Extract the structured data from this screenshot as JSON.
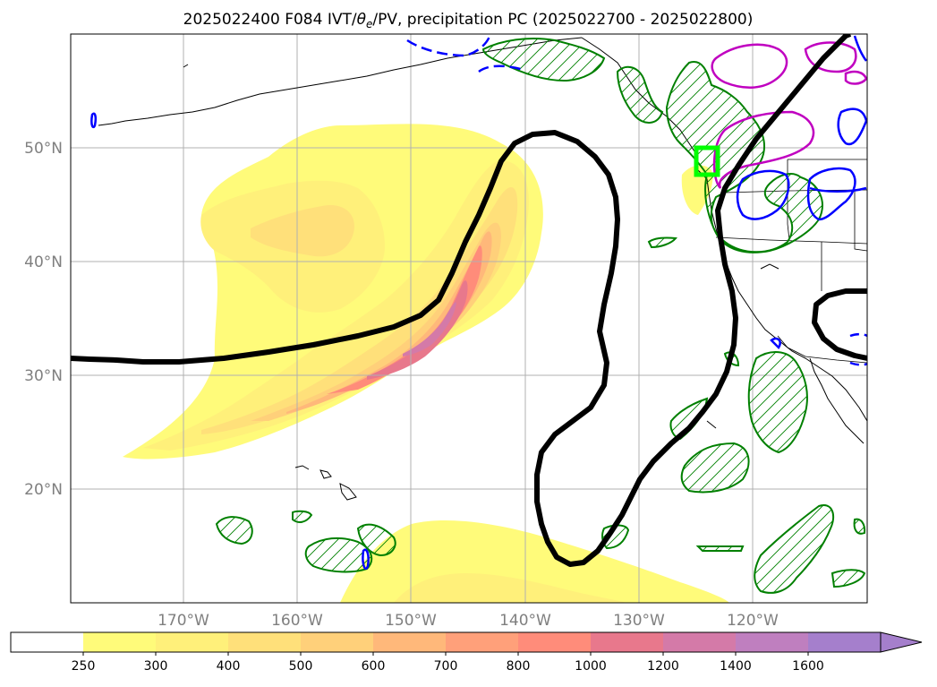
{
  "title": "2025022400 F084 IVT/θe/PV, precipitation PC (2025022700 - 2025022800)",
  "title_parts": {
    "prefix": "2025022400 F084 IVT/",
    "theta": "θ",
    "sub": "e",
    "suffix": "/PV, precipitation PC (2025022700 - 2025022800)"
  },
  "map": {
    "lon_range": [
      -180,
      -110
    ],
    "lat_range": [
      10,
      60
    ],
    "gridlines": true,
    "lat_ticks": [
      {
        "value": 50,
        "label": "50°N"
      },
      {
        "value": 40,
        "label": "40°N"
      },
      {
        "value": 30,
        "label": "30°N"
      },
      {
        "value": 20,
        "label": "20°N"
      }
    ],
    "lon_ticks": [
      {
        "value": -170,
        "label": "170°W"
      },
      {
        "value": -160,
        "label": "160°W"
      },
      {
        "value": -150,
        "label": "150°W"
      },
      {
        "value": -140,
        "label": "140°W"
      },
      {
        "value": -130,
        "label": "130°W"
      },
      {
        "value": -120,
        "label": "120°W"
      }
    ],
    "highlight_box": {
      "lon": [
        -125.5,
        -123.5
      ],
      "lat": [
        47.7,
        50.2
      ],
      "color": "#00ff00"
    },
    "colors": {
      "theta_contour": "#000000",
      "precip_hatch": "#008000",
      "pv_contour": "#0000ff",
      "magenta_contour": "#c000c0",
      "coast": "#000000",
      "grid": "#b0b0b0"
    }
  },
  "colorbar": {
    "levels": [
      "250",
      "300",
      "400",
      "500",
      "600",
      "700",
      "800",
      "1000",
      "1200",
      "1400",
      "1600"
    ],
    "colors": [
      "#ffffff",
      "#fffb7a",
      "#fff07a",
      "#ffe07a",
      "#ffd07a",
      "#ffb87a",
      "#ffa07a",
      "#ff8c7a",
      "#e8788c",
      "#d47aa8",
      "#bf7fbf",
      "#a57fcc"
    ],
    "extend": "max"
  }
}
